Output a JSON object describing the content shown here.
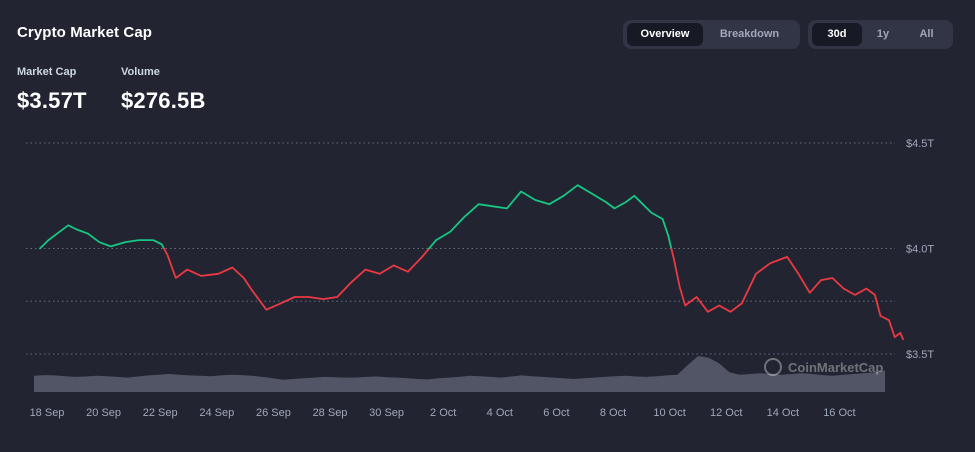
{
  "header": {
    "title": "Crypto Market Cap",
    "view_tabs": [
      {
        "label": "Overview",
        "active": true
      },
      {
        "label": "Breakdown",
        "active": false
      }
    ],
    "range_tabs": [
      {
        "label": "30d",
        "active": true
      },
      {
        "label": "1y",
        "active": false
      },
      {
        "label": "All",
        "active": false
      }
    ]
  },
  "stats": [
    {
      "label": "Market Cap",
      "value": "$3.57T"
    },
    {
      "label": "Volume",
      "value": "$276.5B"
    }
  ],
  "watermark": "CoinMarketCap",
  "colors": {
    "background": "#222531",
    "up": "#16c784",
    "down": "#ea3943",
    "grid": "#858ca2",
    "volume": "#5a5e6e",
    "axis_text": "#a1a7bb"
  },
  "chart_data": {
    "type": "line",
    "title": "",
    "xlabel": "",
    "ylabel": "",
    "y_ticks": [
      "$4.5T",
      "$4.0T",
      "$3.5T"
    ],
    "ylim": [
      3.5,
      4.5
    ],
    "x_ticks": [
      "18 Sep",
      "20 Sep",
      "22 Sep",
      "24 Sep",
      "26 Sep",
      "28 Sep",
      "30 Sep",
      "2 Oct",
      "4 Oct",
      "6 Oct",
      "8 Oct",
      "10 Oct",
      "12 Oct",
      "14 Oct",
      "16 Oct"
    ],
    "baseline": 4.0,
    "series": [
      {
        "values_in_trillions": [
          [
            0.0,
            4.0
          ],
          [
            0.3,
            4.04
          ],
          [
            0.6,
            4.07
          ],
          [
            1.0,
            4.11
          ],
          [
            1.3,
            4.09
          ],
          [
            1.7,
            4.07
          ],
          [
            2.1,
            4.03
          ],
          [
            2.5,
            4.01
          ],
          [
            3.0,
            4.03
          ],
          [
            3.5,
            4.04
          ],
          [
            4.0,
            4.04
          ],
          [
            4.3,
            4.02
          ],
          [
            4.5,
            3.97
          ],
          [
            4.8,
            3.86
          ],
          [
            5.2,
            3.9
          ],
          [
            5.7,
            3.87
          ],
          [
            6.3,
            3.88
          ],
          [
            6.8,
            3.91
          ],
          [
            7.2,
            3.86
          ],
          [
            7.5,
            3.8
          ],
          [
            8.0,
            3.71
          ],
          [
            8.5,
            3.74
          ],
          [
            9.0,
            3.77
          ],
          [
            9.5,
            3.77
          ],
          [
            10.0,
            3.76
          ],
          [
            10.5,
            3.77
          ],
          [
            11.0,
            3.84
          ],
          [
            11.5,
            3.9
          ],
          [
            12.0,
            3.88
          ],
          [
            12.5,
            3.92
          ],
          [
            13.0,
            3.89
          ],
          [
            13.5,
            3.96
          ],
          [
            14.0,
            4.04
          ],
          [
            14.5,
            4.08
          ],
          [
            15.0,
            4.15
          ],
          [
            15.5,
            4.21
          ],
          [
            16.0,
            4.2
          ],
          [
            16.5,
            4.19
          ],
          [
            17.0,
            4.27
          ],
          [
            17.5,
            4.23
          ],
          [
            18.0,
            4.21
          ],
          [
            18.5,
            4.25
          ],
          [
            19.0,
            4.3
          ],
          [
            19.5,
            4.26
          ],
          [
            20.0,
            4.22
          ],
          [
            20.3,
            4.19
          ],
          [
            20.7,
            4.22
          ],
          [
            21.0,
            4.25
          ],
          [
            21.3,
            4.21
          ],
          [
            21.6,
            4.17
          ],
          [
            22.0,
            4.14
          ],
          [
            22.2,
            4.06
          ],
          [
            22.4,
            3.95
          ],
          [
            22.6,
            3.82
          ],
          [
            22.8,
            3.73
          ],
          [
            23.2,
            3.77
          ],
          [
            23.6,
            3.7
          ],
          [
            24.0,
            3.73
          ],
          [
            24.4,
            3.7
          ],
          [
            24.8,
            3.74
          ],
          [
            25.3,
            3.88
          ],
          [
            25.8,
            3.93
          ],
          [
            26.4,
            3.96
          ],
          [
            26.8,
            3.88
          ],
          [
            27.2,
            3.79
          ],
          [
            27.6,
            3.85
          ],
          [
            28.0,
            3.86
          ],
          [
            28.4,
            3.81
          ],
          [
            28.8,
            3.78
          ],
          [
            29.2,
            3.81
          ],
          [
            29.5,
            3.78
          ],
          [
            29.7,
            3.68
          ],
          [
            30.0,
            3.66
          ],
          [
            30.2,
            3.58
          ],
          [
            30.4,
            3.6
          ],
          [
            30.5,
            3.57
          ]
        ]
      }
    ],
    "volume_relative": [
      0.45,
      0.47,
      0.46,
      0.44,
      0.42,
      0.43,
      0.45,
      0.44,
      0.42,
      0.4,
      0.43,
      0.46,
      0.48,
      0.5,
      0.48,
      0.46,
      0.45,
      0.44,
      0.46,
      0.48,
      0.47,
      0.45,
      0.42,
      0.38,
      0.34,
      0.36,
      0.38,
      0.4,
      0.42,
      0.41,
      0.4,
      0.4,
      0.42,
      0.43,
      0.41,
      0.4,
      0.38,
      0.36,
      0.35,
      0.38,
      0.4,
      0.42,
      0.45,
      0.44,
      0.42,
      0.4,
      0.43,
      0.46,
      0.44,
      0.42,
      0.4,
      0.38,
      0.36,
      0.38,
      0.4,
      0.42,
      0.44,
      0.45,
      0.43,
      0.42,
      0.44,
      0.46,
      0.48,
      0.75,
      1.0,
      0.95,
      0.8,
      0.55,
      0.48,
      0.5,
      0.52,
      0.5,
      0.48,
      0.5,
      0.52,
      0.5,
      0.47,
      0.45,
      0.48,
      0.5,
      0.52,
      0.55,
      0.6
    ]
  }
}
